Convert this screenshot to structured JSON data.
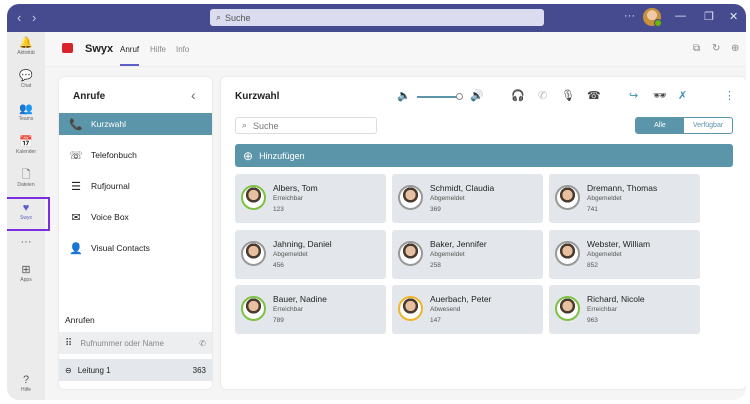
{
  "titlebar": {
    "search_placeholder": "Suche",
    "more": "···"
  },
  "rail": [
    {
      "label": "Aktivität",
      "icon": "bell-icon",
      "g": "🔔"
    },
    {
      "label": "Chat",
      "icon": "chat-icon",
      "g": "💬"
    },
    {
      "label": "Teams",
      "icon": "teams-icon",
      "g": "👥"
    },
    {
      "label": "Kalender",
      "icon": "calendar-icon",
      "g": "📅"
    },
    {
      "label": "Dateien",
      "icon": "file-icon",
      "g": "🗋"
    },
    {
      "label": "Swyx",
      "icon": "swyx-icon",
      "g": "♥"
    },
    {
      "label": "",
      "icon": "more-icon",
      "g": "···"
    },
    {
      "label": "Apps",
      "icon": "apps-icon",
      "g": "⊞"
    },
    {
      "label": "Hilfe",
      "icon": "help-icon",
      "g": "?"
    }
  ],
  "app": {
    "name": "Swyx",
    "tabs": [
      "Anruf",
      "Hilfe",
      "Info"
    ],
    "selected_tab": "Anruf"
  },
  "left": {
    "title": "Anrufe",
    "items": [
      {
        "label": "Kurzwahl",
        "g": "📞"
      },
      {
        "label": "Telefonbuch",
        "g": "☏"
      },
      {
        "label": "Rufjournal",
        "g": "☰"
      },
      {
        "label": "Voice Box",
        "g": "✉"
      },
      {
        "label": "Visual Contacts",
        "g": "👤"
      }
    ],
    "selected": "Kurzwahl",
    "call_title": "Anrufen",
    "dial_placeholder": "Rufnummer oder Name",
    "line_label": "Leitung 1",
    "line_number": "363"
  },
  "main": {
    "title": "Kurzwahl",
    "volume_percent": 90,
    "search_placeholder": "Suche",
    "filter": [
      "Alle",
      "Verfügbar"
    ],
    "filter_selected": "Alle",
    "add_label": "Hinzufügen",
    "contacts": [
      {
        "name": "Albers, Tom",
        "status": "Erreichbar",
        "ext": "123",
        "ring": "#7cc242"
      },
      {
        "name": "Schmidt, Claudia",
        "status": "Abgemeldet",
        "ext": "369",
        "ring": "#999999"
      },
      {
        "name": "Dremann, Thomas",
        "status": "Abgemeldet",
        "ext": "741",
        "ring": "#999999"
      },
      {
        "name": "Jahning, Daniel",
        "status": "Abgemeldet",
        "ext": "456",
        "ring": "#999999"
      },
      {
        "name": "Baker, Jennifer",
        "status": "Abgemeldet",
        "ext": "258",
        "ring": "#999999"
      },
      {
        "name": "Webster, William",
        "status": "Abgemeldet",
        "ext": "852",
        "ring": "#999999"
      },
      {
        "name": "Bauer, Nadine",
        "status": "Erreichbar",
        "ext": "789",
        "ring": "#7cc242"
      },
      {
        "name": "Auerbach, Peter",
        "status": "Abwesend",
        "ext": "147",
        "ring": "#f0b429"
      },
      {
        "name": "Richard, Nicole",
        "status": "Erreichbar",
        "ext": "963",
        "ring": "#7cc242"
      }
    ]
  },
  "colors": {
    "titlebar": "#464a8f",
    "accent": "#5b95aa",
    "teams_purple": "#5b5fc7"
  }
}
